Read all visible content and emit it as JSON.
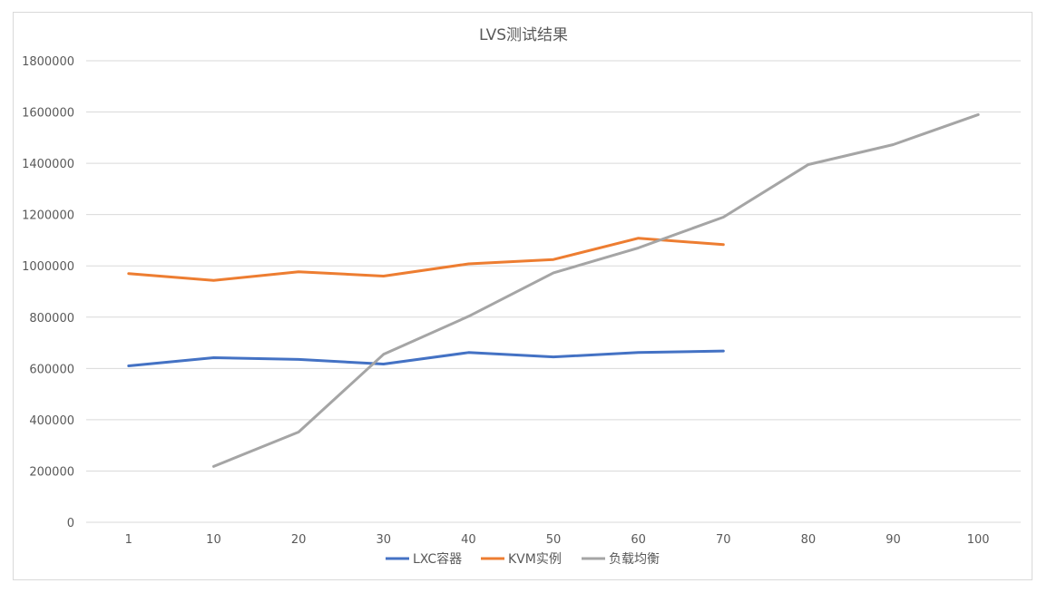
{
  "chart_data": {
    "type": "line",
    "title": "LVS测试结果",
    "categories": [
      "1",
      "10",
      "20",
      "30",
      "40",
      "50",
      "60",
      "70",
      "80",
      "90",
      "100"
    ],
    "yticks": [
      "0",
      "200000",
      "400000",
      "600000",
      "800000",
      "1000000",
      "1200000",
      "1400000",
      "1600000",
      "1800000"
    ],
    "ylim": [
      0,
      1800000
    ],
    "grid": true,
    "legend_position": "bottom",
    "series": [
      {
        "name": "LXC容器",
        "color": "#4472c4",
        "values": [
          610000,
          642000,
          635000,
          617000,
          662000,
          645000,
          662000,
          668000,
          null,
          null,
          null
        ]
      },
      {
        "name": "KVM实例",
        "color": "#ed7d31",
        "values": [
          970000,
          943000,
          977000,
          960000,
          1008000,
          1025000,
          1108000,
          1083000,
          null,
          null,
          null
        ]
      },
      {
        "name": "负载均衡",
        "color": "#a5a5a5",
        "values": [
          null,
          218000,
          352000,
          655000,
          803000,
          973000,
          1070000,
          1190000,
          1395000,
          1473000,
          1590000
        ]
      }
    ]
  }
}
